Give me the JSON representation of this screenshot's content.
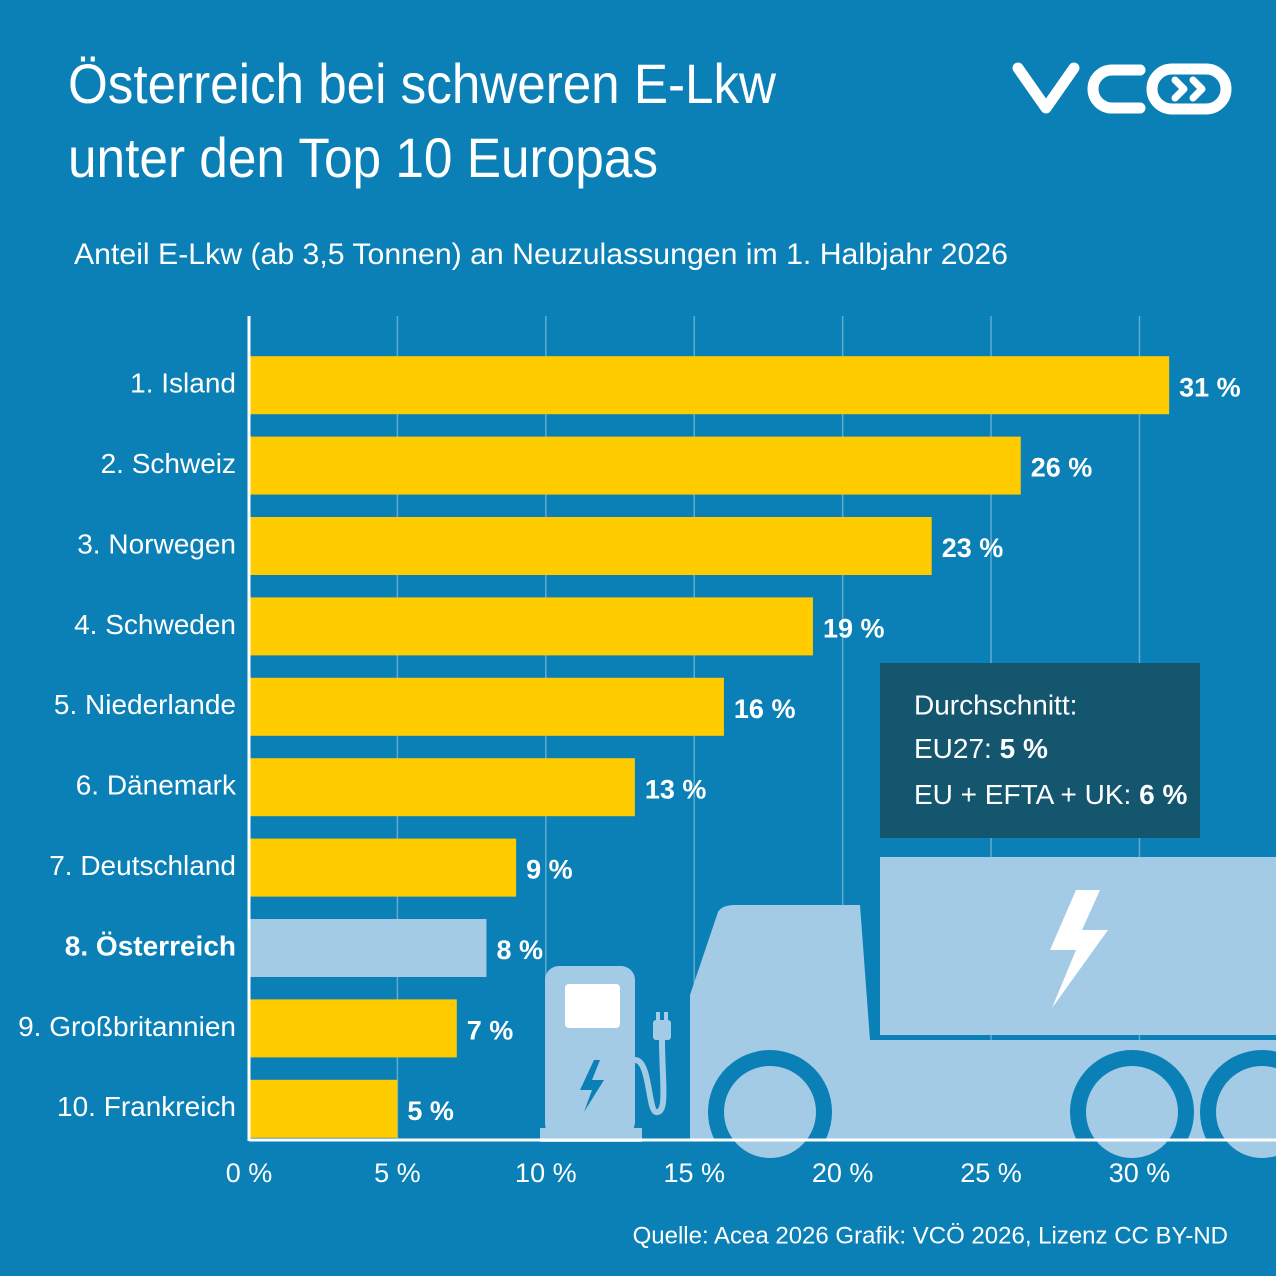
{
  "chart_data": {
    "type": "hbar",
    "title": [
      "Österreich bei schweren E-Lkw",
      "unter den Top 10 Europas"
    ],
    "subtitle": "Anteil E-Lkw (ab 3,5 Tonnen) an Neuzulassungen im 1. Halbjahr 2026",
    "categories": [
      "1. Island",
      "2. Schweiz",
      "3. Norwegen",
      "4. Schweden",
      "5. Niederlande",
      "6. Dänemark",
      "7. Deutschland",
      "8. Österreich",
      "9. Großbritannien",
      "10. Frankreich"
    ],
    "values": [
      31,
      26,
      23,
      19,
      16,
      13,
      9,
      8,
      7,
      5
    ],
    "value_labels": [
      "31 %",
      "26 %",
      "23 %",
      "19 %",
      "16 %",
      "13 %",
      "9 %",
      "8 %",
      "7 %",
      "5 %"
    ],
    "color": "#ffcc00",
    "colors": [
      "#ffcc00",
      "#ffcc00",
      "#ffcc00",
      "#ffcc00",
      "#ffcc00",
      "#ffcc00",
      "#ffcc00",
      "#a3cbe6",
      "#ffcc00",
      "#ffcc00"
    ],
    "xlim": [
      0,
      34.6
    ],
    "xticks": [
      {
        "value": 0,
        "label": "0 %"
      },
      {
        "value": 5,
        "label": "5 %"
      },
      {
        "value": 10,
        "label": "10 %"
      },
      {
        "value": 15,
        "label": "15 %"
      },
      {
        "value": 20,
        "label": "20 %"
      },
      {
        "value": 25,
        "label": "25 %"
      },
      {
        "value": 30,
        "label": "30 %"
      }
    ],
    "grid": true,
    "annotation": {
      "title": "Durchschnitt:",
      "items": [
        {
          "label": "EU27:",
          "value_label": "5 %"
        },
        {
          "label": "EU + EFTA + UK:",
          "value_label": "6 %"
        }
      ]
    },
    "source": "Quelle: Acea 2026 Grafik: VCÖ 2026, Lizenz CC BY-ND"
  }
}
